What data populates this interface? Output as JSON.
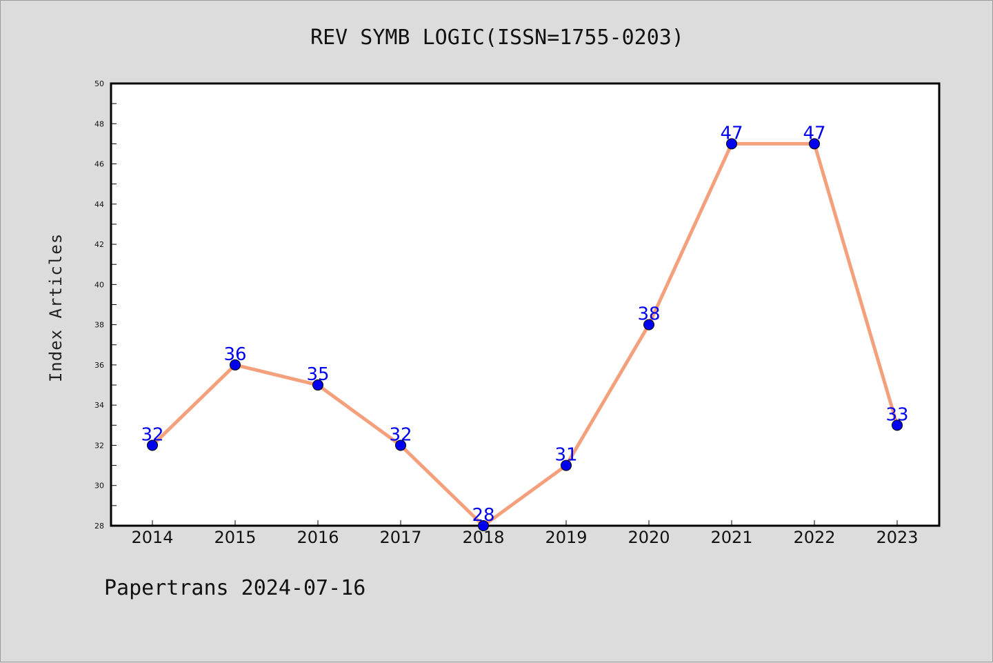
{
  "title": "REV SYMB LOGIC(ISSN=1755-0203)",
  "footer": "Papertrans 2024-07-16",
  "colors": {
    "line": "#f4a07c",
    "marker": "#0000ee",
    "label": "#0000ee",
    "background": "#dcdcdc",
    "plot_bg": "#ffffff"
  },
  "chart_data": {
    "type": "line",
    "title": "REV SYMB LOGIC(ISSN=1755-0203)",
    "xlabel": "",
    "ylabel": "Index Articles",
    "categories": [
      "2014",
      "2015",
      "2016",
      "2017",
      "2018",
      "2019",
      "2020",
      "2021",
      "2022",
      "2023"
    ],
    "series": [
      {
        "values": [
          32,
          36,
          35,
          32,
          28,
          31,
          38,
          47,
          47,
          33
        ]
      }
    ],
    "ylim": [
      28,
      50
    ],
    "yticks": [
      28,
      30,
      32,
      34,
      36,
      38,
      40,
      42,
      44,
      46,
      48,
      50
    ],
    "grid": false,
    "legend": "none",
    "data_labels": true
  }
}
